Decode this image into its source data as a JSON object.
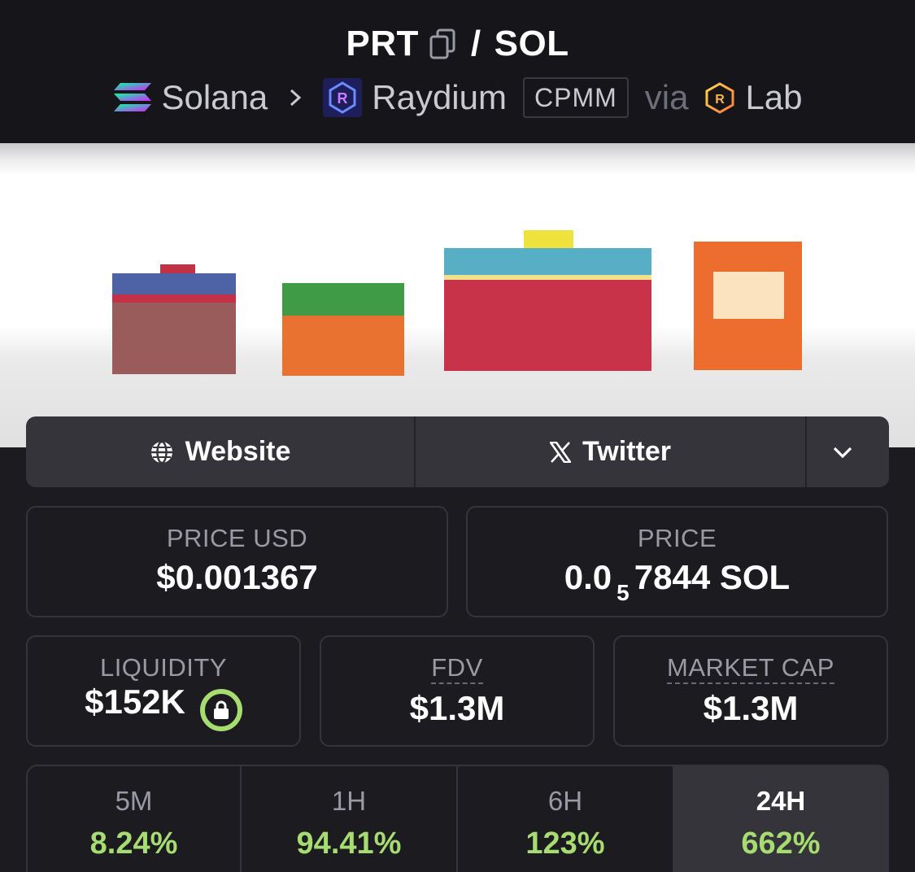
{
  "header": {
    "base_token": "PRT",
    "separator": "/",
    "quote_token": "SOL",
    "chain": "Solana",
    "dex": "Raydium",
    "pool_type": "CPMM",
    "via_label": "via",
    "launchpad": "Lab"
  },
  "icons": {
    "copy": "copy-icon",
    "chain": "solana-logo-icon",
    "breadcrumb": "chevron-right-icon",
    "dex": "raydium-logo-icon",
    "launchpad": "raydium-lab-logo-icon",
    "website": "globe-icon",
    "twitter": "x-logo-icon",
    "more": "chevron-down-icon",
    "liquidity_lock": "lock-icon"
  },
  "links": {
    "website_label": "Website",
    "twitter_label": "Twitter"
  },
  "stats": {
    "price_usd": {
      "label": "PRICE USD",
      "value": "$0.001367"
    },
    "price_native": {
      "label": "PRICE",
      "value_prefix": "0.0",
      "zero_count": "5",
      "value_suffix": "7844 SOL"
    },
    "liquidity": {
      "label": "LIQUIDITY",
      "value": "$152K"
    },
    "fdv": {
      "label": "FDV",
      "value": "$1.3M"
    },
    "market_cap": {
      "label": "MARKET CAP",
      "value": "$1.3M"
    }
  },
  "timeframes": [
    {
      "label": "5M",
      "change": "8.24%"
    },
    {
      "label": "1H",
      "change": "94.41%"
    },
    {
      "label": "6H",
      "change": "123%"
    },
    {
      "label": "24H",
      "change": "662%",
      "active": true
    }
  ],
  "colors": {
    "background": "#1b1b20",
    "card_border": "#34343c",
    "positive": "#a6dc70",
    "muted_text": "#9a9aa4"
  }
}
